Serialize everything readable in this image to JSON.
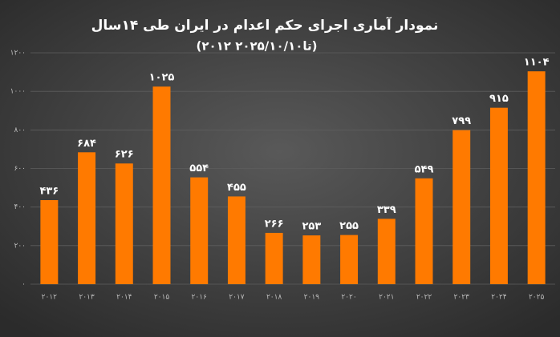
{
  "chart_data": {
    "type": "bar",
    "title": "نمودار آماری اجرای حکم اعدام در ایران طی ۱۴سال",
    "subtitle": "(۲۰۱۲ تا۲۰۲۵/۱۰/۱۰)",
    "categories": [
      "۲۰۱۲",
      "۲۰۱۳",
      "۲۰۱۴",
      "۲۰۱۵",
      "۲۰۱۶",
      "۲۰۱۷",
      "۲۰۱۸",
      "۲۰۱۹",
      "۲۰۲۰",
      "۲۰۲۱",
      "۲۰۲۲",
      "۲۰۲۳",
      "۲۰۲۴",
      "۲۰۲۵"
    ],
    "values": [
      436,
      684,
      626,
      1025,
      554,
      455,
      266,
      253,
      255,
      339,
      549,
      799,
      915,
      1104
    ],
    "value_labels": [
      "۴۳۶",
      "۶۸۴",
      "۶۲۶",
      "۱۰۲۵",
      "۵۵۴",
      "۴۵۵",
      "۲۶۶",
      "۲۵۳",
      "۲۵۵",
      "۳۳۹",
      "۵۴۹",
      "۷۹۹",
      "۹۱۵",
      "۱۱۰۴"
    ],
    "color": "#ff7a00",
    "ylim": [
      0,
      1200
    ],
    "yticks": [
      {
        "value": 0,
        "label": "۰"
      },
      {
        "value": 200,
        "label": "۲۰۰"
      },
      {
        "value": 400,
        "label": "۴۰۰"
      },
      {
        "value": 600,
        "label": "۶۰۰"
      },
      {
        "value": 800,
        "label": "۸۰۰"
      },
      {
        "value": 1000,
        "label": "۱۰۰۰"
      },
      {
        "value": 1200,
        "label": "۱۲۰۰"
      }
    ],
    "grid": true
  }
}
